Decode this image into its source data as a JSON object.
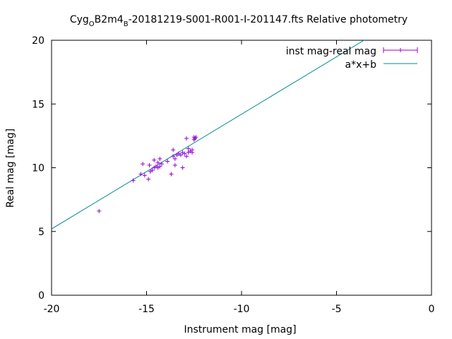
{
  "chart_data": {
    "type": "scatter",
    "title": {
      "prefix": "Cyg",
      "sub1": "O",
      "middle": "B2m4",
      "sub2": "B",
      "suffix": "-20181219-S001-R001-I-201147.fts Relative photometry"
    },
    "xlabel": "Instrument mag [mag]",
    "ylabel": "Real mag [mag]",
    "xlim": [
      -20,
      0
    ],
    "ylim": [
      0,
      20
    ],
    "xticks": [
      -20,
      -15,
      -10,
      -5,
      0
    ],
    "yticks": [
      0,
      5,
      10,
      15,
      20
    ],
    "grid": false,
    "legend_position": "top-right",
    "series": [
      {
        "name": "inst mag-real mag",
        "kind": "points",
        "color": "#9400d3",
        "points": [
          [
            -17.5,
            6.6
          ],
          [
            -15.7,
            9.0
          ],
          [
            -15.3,
            9.5
          ],
          [
            -15.2,
            10.3
          ],
          [
            -15.1,
            9.4
          ],
          [
            -14.9,
            9.1
          ],
          [
            -14.85,
            10.2
          ],
          [
            -14.8,
            9.7
          ],
          [
            -14.7,
            9.8
          ],
          [
            -14.6,
            10.0
          ],
          [
            -14.6,
            10.6
          ],
          [
            -14.5,
            10.1
          ],
          [
            -14.4,
            10.0
          ],
          [
            -14.4,
            10.4
          ],
          [
            -14.3,
            10.7
          ],
          [
            -14.3,
            10.1
          ],
          [
            -14.2,
            10.3
          ],
          [
            -13.9,
            10.5
          ],
          [
            -13.7,
            9.5
          ],
          [
            -13.6,
            10.9
          ],
          [
            -13.6,
            11.4
          ],
          [
            -13.5,
            10.7
          ],
          [
            -13.5,
            10.2
          ],
          [
            -13.4,
            11.0
          ],
          [
            -13.3,
            11.1
          ],
          [
            -13.2,
            11.0
          ],
          [
            -13.1,
            11.2
          ],
          [
            -13.1,
            10.0
          ],
          [
            -13.0,
            11.1
          ],
          [
            -12.9,
            10.9
          ],
          [
            -12.9,
            12.3
          ],
          [
            -12.8,
            11.2
          ],
          [
            -12.8,
            11.5
          ],
          [
            -12.7,
            11.3
          ],
          [
            -12.6,
            11.4
          ],
          [
            -12.6,
            11.2
          ],
          [
            -12.5,
            12.4
          ],
          [
            -12.5,
            12.2
          ],
          [
            -12.45,
            12.3
          ],
          [
            -12.4,
            12.4
          ]
        ]
      },
      {
        "name": "a*x+b",
        "kind": "line",
        "color": "#008b8b",
        "slope": 0.9,
        "intercept": 23.2
      }
    ]
  }
}
